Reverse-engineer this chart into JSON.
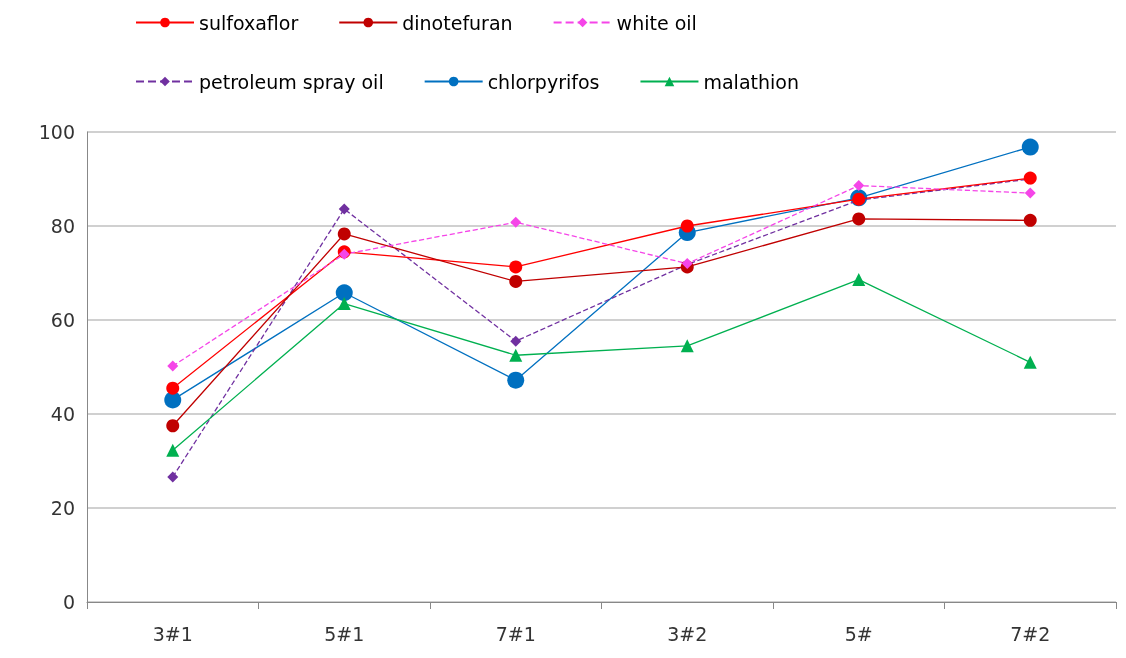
{
  "chart_data": {
    "type": "line",
    "categories": [
      "3#1",
      "5#1",
      "7#1",
      "3#2",
      "5#",
      "7#2"
    ],
    "series": [
      {
        "name": "sulfoxaflor",
        "color": "#ff0000",
        "marker": "circle",
        "line_style": "solid",
        "values": [
          45.5,
          74.5,
          71.3,
          80,
          85.7,
          90.2
        ]
      },
      {
        "name": "dinotefuran",
        "color": "#c00000",
        "marker": "circle",
        "line_style": "solid",
        "values": [
          37.5,
          78.3,
          68.2,
          71.3,
          81.5,
          81.2
        ]
      },
      {
        "name": "white oil",
        "color": "#f545e8",
        "marker": "diamond",
        "line_style": "dashed",
        "values": [
          50.2,
          74,
          80.8,
          72,
          88.6,
          87
        ]
      },
      {
        "name": "petroleum spray oil",
        "color": "#7030a0",
        "marker": "diamond",
        "line_style": "dashed",
        "values": [
          26.6,
          83.6,
          55.5,
          71.8,
          85.5,
          90
        ]
      },
      {
        "name": "chlorpyrifos",
        "color": "#0070c0",
        "marker": "circle",
        "line_style": "solid",
        "values": [
          43,
          65.8,
          47.2,
          78.6,
          86,
          96.8
        ]
      },
      {
        "name": "malathion",
        "color": "#00b050",
        "marker": "triangle",
        "line_style": "solid",
        "values": [
          32.3,
          63.5,
          52.5,
          54.5,
          68.6,
          51
        ]
      }
    ],
    "ylim": [
      0,
      100
    ],
    "yticks": [
      0,
      20,
      40,
      60,
      80,
      100
    ],
    "grid": "y",
    "legend": "top"
  }
}
